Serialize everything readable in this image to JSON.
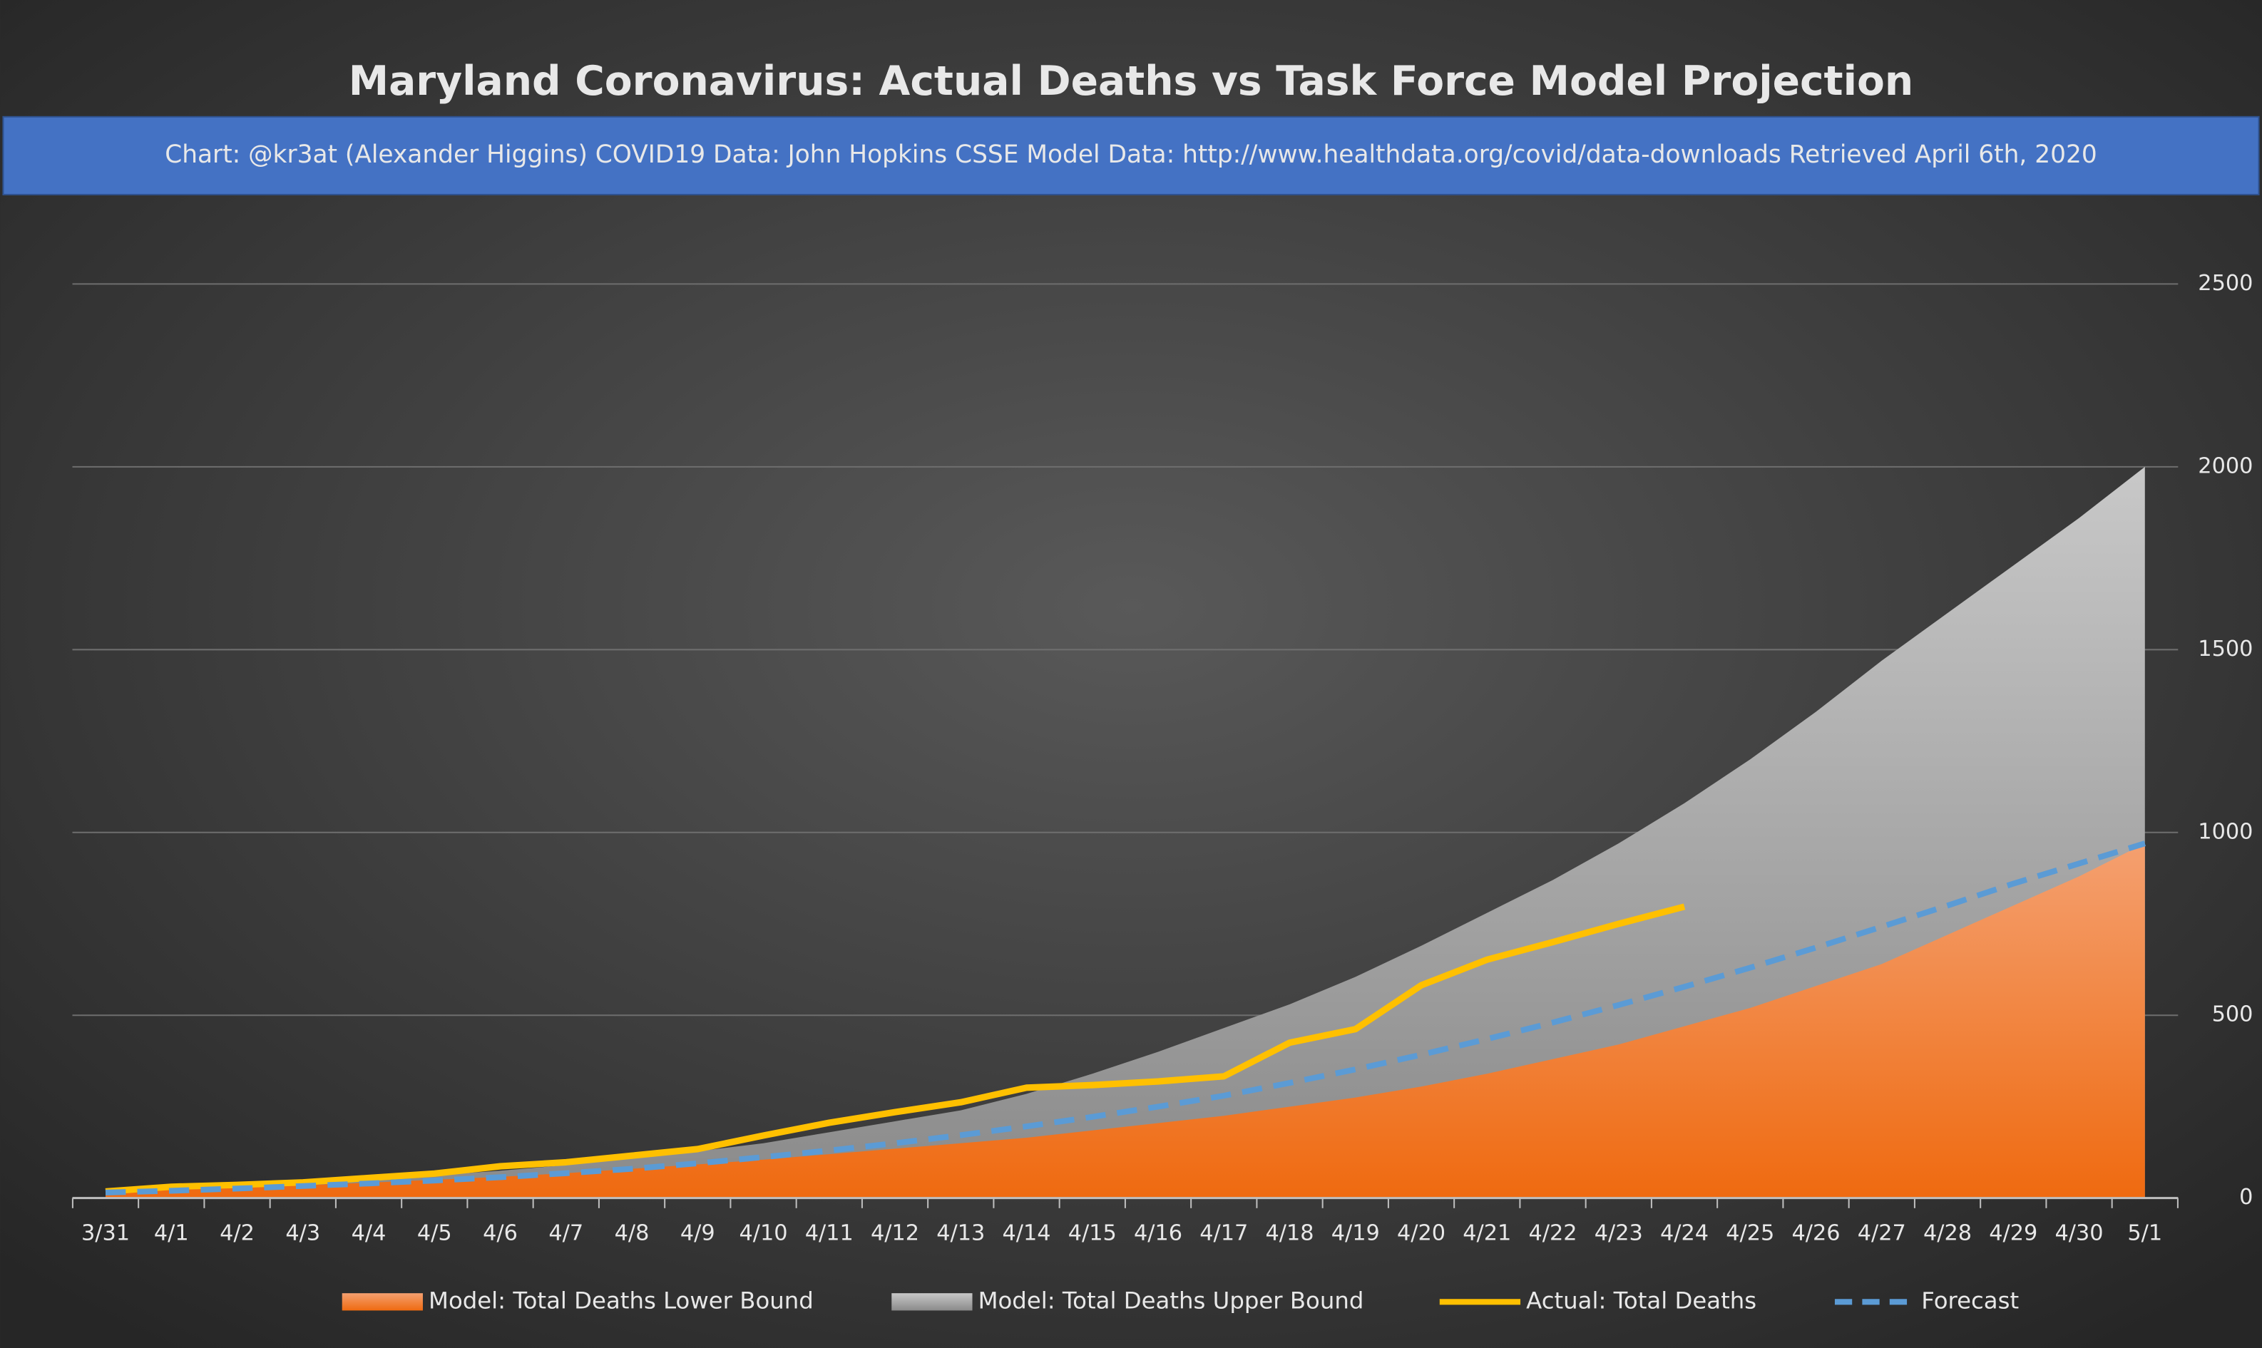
{
  "chart_data": {
    "type": "area",
    "title": "Maryland Coronavirus: Actual Deaths vs Task Force Model Projection",
    "subtitle": "Chart: @kr3at (Alexander Higgins)    COVID19 Data: John Hopkins CSSE    Model Data: http://www.healthdata.org/covid/data-downloads Retrieved April 6th, 2020",
    "categories": [
      "3/31",
      "4/1",
      "4/2",
      "4/3",
      "4/4",
      "4/5",
      "4/6",
      "4/7",
      "4/8",
      "4/9",
      "4/10",
      "4/11",
      "4/12",
      "4/13",
      "4/14",
      "4/15",
      "4/16",
      "4/17",
      "4/18",
      "4/19",
      "4/20",
      "4/21",
      "4/22",
      "4/23",
      "4/24",
      "4/25",
      "4/26",
      "4/27",
      "4/28",
      "4/29",
      "4/30",
      "5/1"
    ],
    "series": [
      {
        "name": "Model: Total Deaths Upper Bound",
        "color": "#a6a6a6",
        "kind": "area",
        "values": [
          18,
          28,
          35,
          42,
          52,
          62,
          75,
          90,
          108,
          128,
          150,
          180,
          210,
          240,
          285,
          340,
          400,
          465,
          530,
          605,
          690,
          780,
          870,
          970,
          1080,
          1200,
          1330,
          1470,
          1600,
          1730,
          1860,
          2000
        ]
      },
      {
        "name": "Model: Total Deaths Lower Bound",
        "color": "#ed7d31",
        "kind": "area",
        "values": [
          15,
          22,
          28,
          35,
          42,
          50,
          58,
          68,
          80,
          92,
          105,
          120,
          135,
          150,
          165,
          185,
          205,
          225,
          250,
          275,
          305,
          340,
          380,
          420,
          470,
          520,
          580,
          640,
          720,
          800,
          880,
          970
        ]
      },
      {
        "name": "Actual: Total Deaths",
        "color": "#ffc000",
        "kind": "line",
        "values": [
          18,
          31,
          36,
          43,
          55,
          67,
          87,
          98,
          116,
          134,
          171,
          206,
          235,
          262,
          302,
          309,
          319,
          333,
          425,
          462,
          582,
          652,
          700,
          750,
          797,
          null,
          null,
          null,
          null,
          null,
          null,
          null
        ]
      },
      {
        "name": "Forecast",
        "color": "#5b9bd5",
        "kind": "line",
        "dashed": true,
        "values": [
          15,
          20,
          26,
          33,
          40,
          48,
          57,
          68,
          80,
          95,
          112,
          130,
          150,
          172,
          196,
          222,
          250,
          280,
          315,
          352,
          392,
          435,
          480,
          528,
          578,
          630,
          685,
          742,
          800,
          860,
          915,
          970
        ]
      }
    ],
    "legend_order": [
      1,
      0,
      2,
      3
    ],
    "ylim": [
      0,
      2500
    ],
    "yticks": [
      0,
      500,
      1000,
      1500,
      2000,
      2500
    ],
    "grid": true
  }
}
